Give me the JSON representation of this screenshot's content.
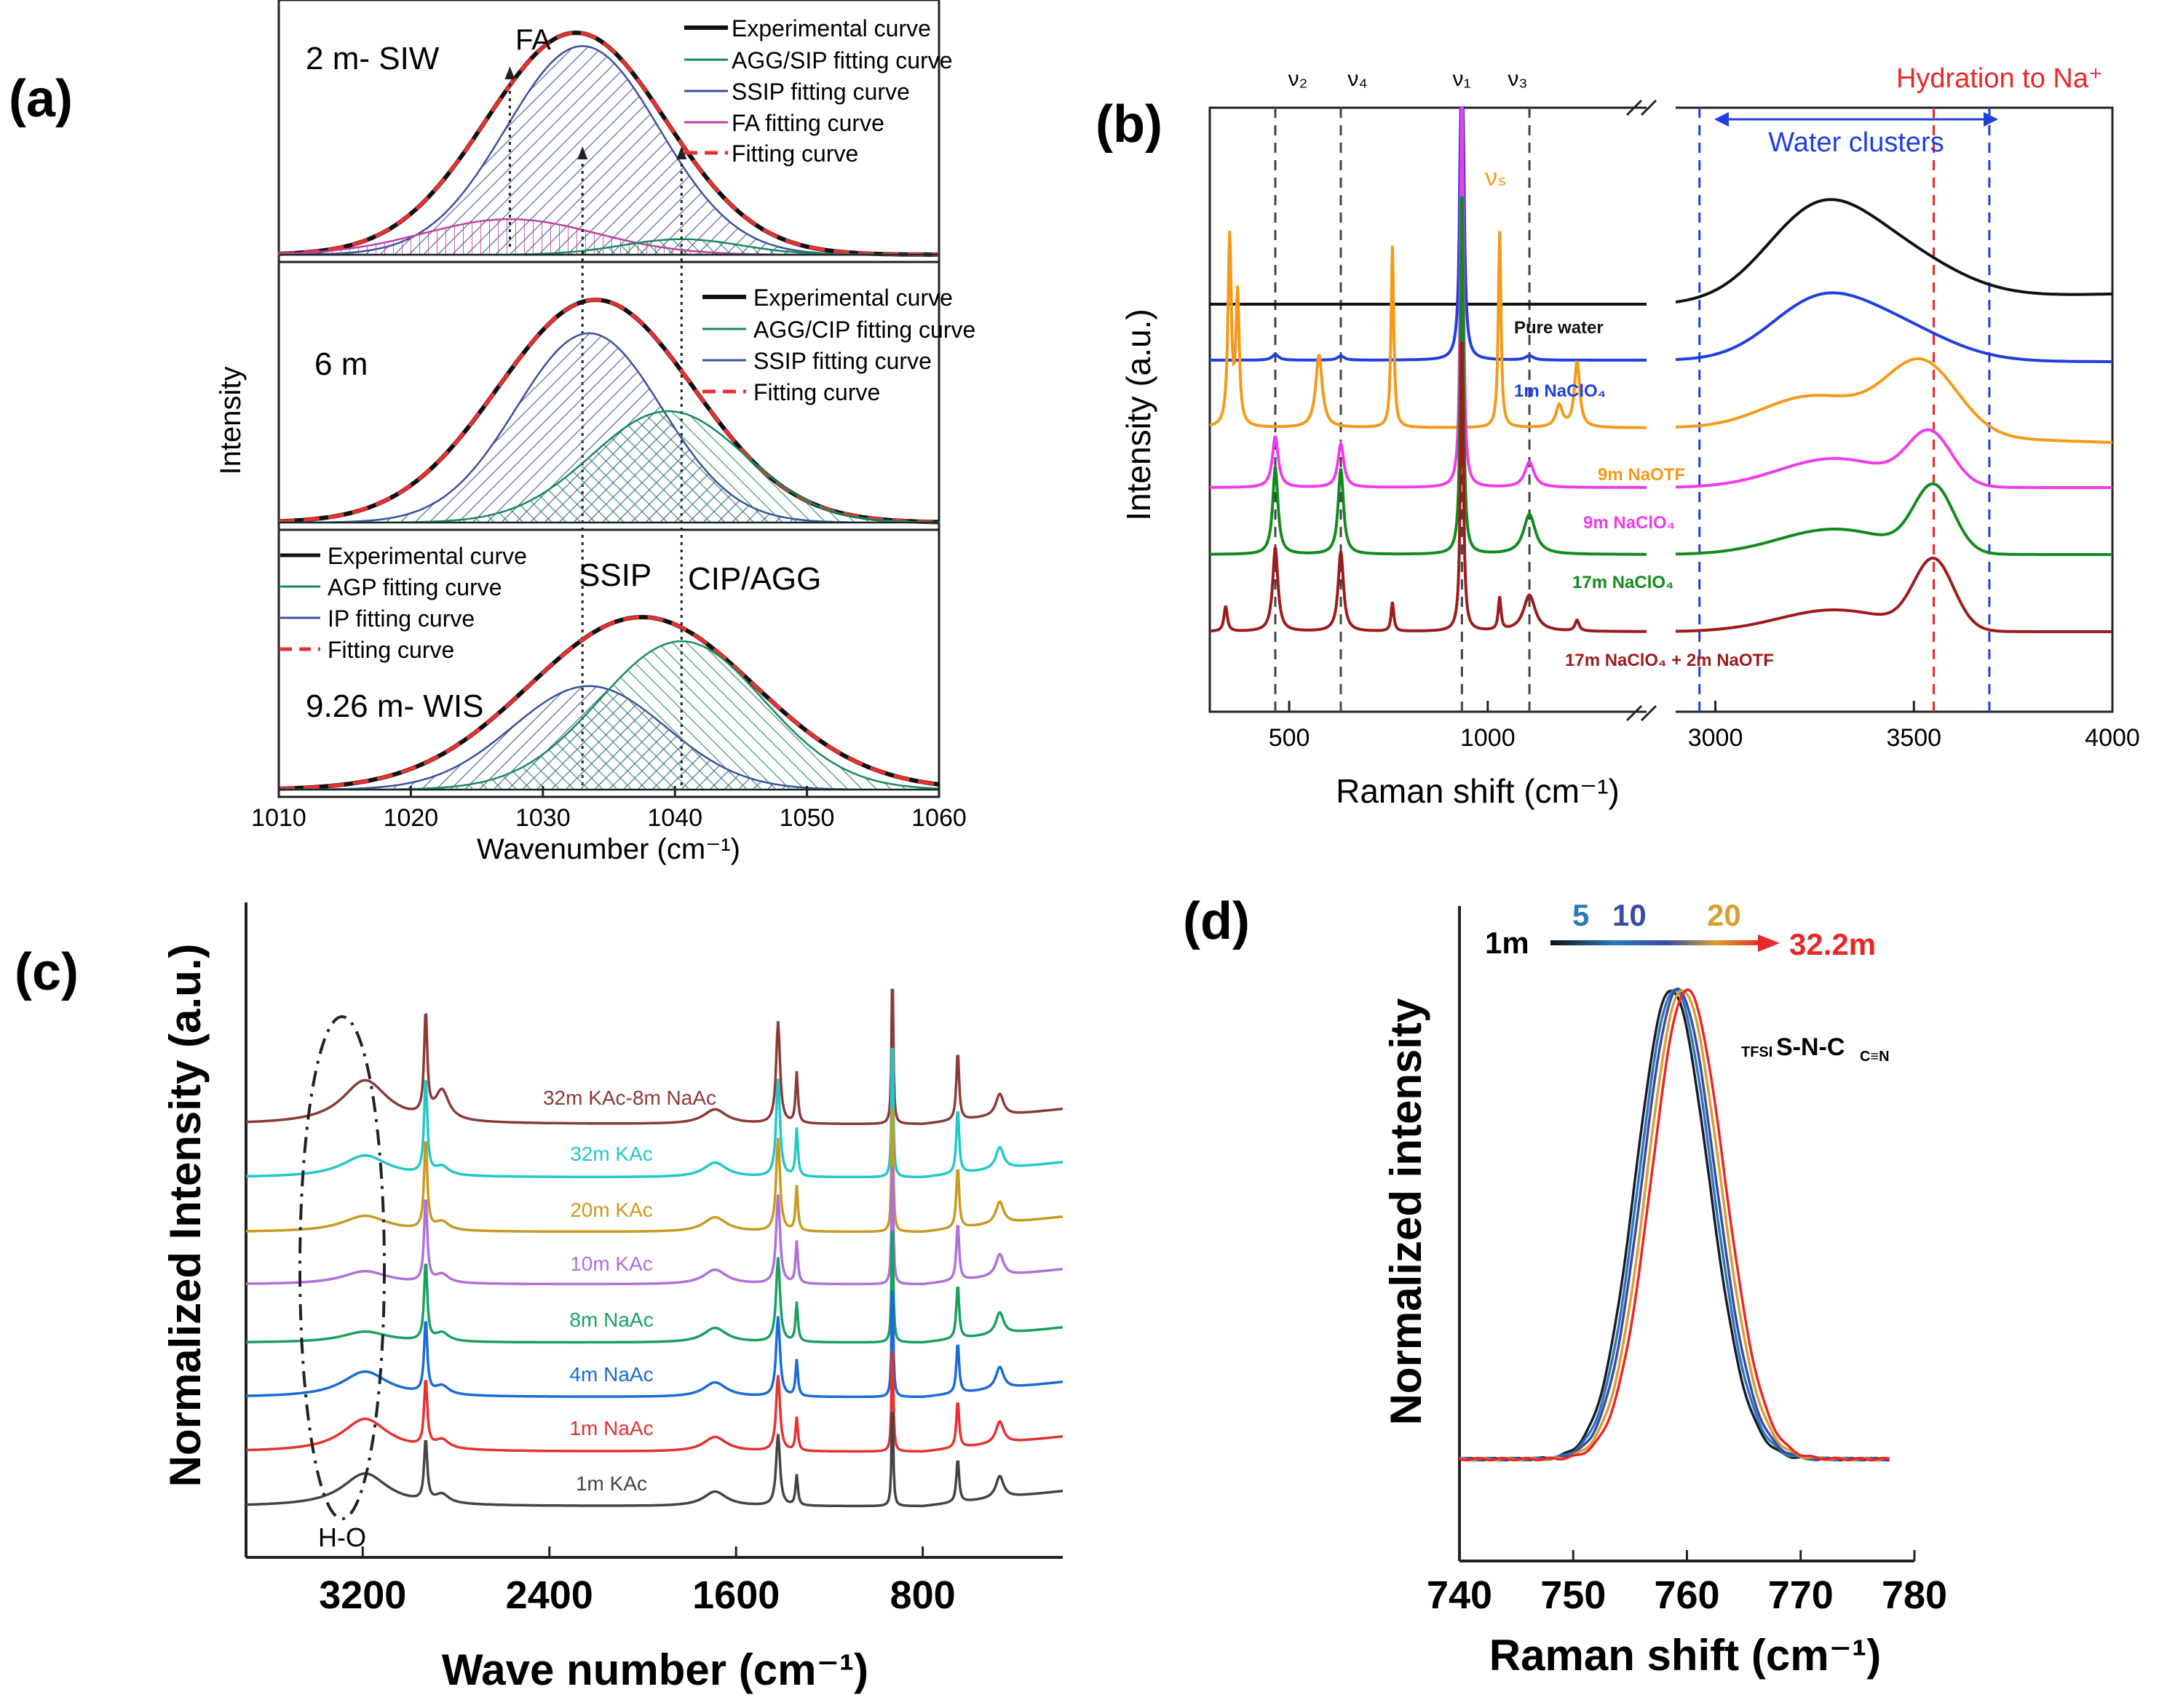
{
  "figure": {
    "panels": [
      "(a)",
      "(b)",
      "(c)",
      "(d)"
    ]
  },
  "chart_data": [
    {
      "id": "a",
      "type": "line",
      "panel_label": "(a)",
      "xlabel": "Wavenumber (cm⁻¹)",
      "ylabel": "Intensity",
      "xlim": [
        1010,
        1060
      ],
      "xticks": [
        "1010",
        "1020",
        "1030",
        "1040",
        "1050",
        "1060"
      ],
      "subpanels": [
        {
          "name": "2 m- SIW",
          "legend": [
            "Experimental curve",
            "AGG/SIP fitting curve",
            "SSIP fitting curve",
            "FA fitting curve",
            "Fitting curve"
          ],
          "peak_labels": [
            "FA"
          ],
          "components": [
            {
              "name": "Experimental curve",
              "center": 1032.5,
              "width": 6.8,
              "amp": 1.0,
              "color": "#111111"
            },
            {
              "name": "SSIP fitting curve",
              "center": 1033,
              "width": 5.8,
              "amp": 0.94,
              "color": "#3c4fa0"
            },
            {
              "name": "FA fitting curve",
              "center": 1027.5,
              "width": 6.5,
              "amp": 0.16,
              "color": "#c040a0"
            },
            {
              "name": "AGG/SIP fitting curve",
              "center": 1040.5,
              "width": 4.5,
              "amp": 0.07,
              "color": "#1a8a5a"
            }
          ]
        },
        {
          "name": "6 m",
          "legend": [
            "Experimental curve",
            "AGG/CIP fitting curve",
            "SSIP fitting curve",
            "Fitting curve"
          ],
          "components": [
            {
              "name": "Experimental curve",
              "center": 1034,
              "width": 7.4,
              "amp": 1.0,
              "color": "#111111"
            },
            {
              "name": "SSIP fitting curve",
              "center": 1033.5,
              "width": 5.5,
              "amp": 0.85,
              "color": "#3c4fa0"
            },
            {
              "name": "AGG/CIP fitting curve",
              "center": 1039.5,
              "width": 5.8,
              "amp": 0.5,
              "color": "#1a8a5a"
            }
          ]
        },
        {
          "name": "9.26 m- WIS",
          "legend": [
            "Experimental curve",
            "AGP fitting curve",
            "IP fitting curve",
            "Fitting curve"
          ],
          "peak_labels": [
            "SSIP",
            "CIP/AGG"
          ],
          "components": [
            {
              "name": "Experimental curve",
              "center": 1037.5,
              "width": 8.5,
              "amp": 1.0,
              "color": "#111111"
            },
            {
              "name": "IP fitting curve",
              "center": 1033.5,
              "width": 5.8,
              "amp": 0.6,
              "color": "#3c4fa0"
            },
            {
              "name": "AGP fitting curve",
              "center": 1040.5,
              "width": 6.2,
              "amp": 0.86,
              "color": "#1a8a5a"
            }
          ]
        }
      ]
    },
    {
      "id": "b",
      "type": "line",
      "panel_label": "(b)",
      "xlabel": "Raman shift (cm⁻¹)",
      "ylabel": "Intensity (a.u.)",
      "xticks_left": [
        "500",
        "1000"
      ],
      "xticks_right": [
        "3000",
        "3500",
        "4000"
      ],
      "xlim_left": [
        300,
        1400
      ],
      "xlim_right": [
        2900,
        4000
      ],
      "band_labels": [
        "ν₂",
        "ν₄",
        "ν₁",
        "ν₃",
        "νₛ"
      ],
      "band_positions": [
        465,
        630,
        935,
        1105
      ],
      "region_labels": {
        "water": "Water clusters",
        "hydration": "Hydration to Na⁺"
      },
      "series": [
        {
          "name": "Pure water",
          "color": "#111111"
        },
        {
          "name": "1m NaClO₄",
          "color": "#1f3fe0"
        },
        {
          "name": "9m NaOTF",
          "color": "#f59a18"
        },
        {
          "name": "9m NaClO₄",
          "color": "#f03ce8"
        },
        {
          "name": "17m NaClO₄",
          "color": "#128a1e"
        },
        {
          "name": "17m NaClO₄ + 2m NaOTF",
          "color": "#9c1c1c"
        }
      ]
    },
    {
      "id": "c",
      "type": "line",
      "panel_label": "(c)",
      "xlabel": "Wave number (cm⁻¹)",
      "ylabel": "Normalized Intensity (a.u.)",
      "xlim": [
        3700,
        200
      ],
      "xticks": [
        "3200",
        "2400",
        "1600",
        "800"
      ],
      "annotation": "H-O",
      "series": [
        {
          "name": "32m KAc-8m NaAc",
          "color": "#8b3a3a"
        },
        {
          "name": "32m KAc",
          "color": "#22c8c8"
        },
        {
          "name": "20m KAc",
          "color": "#c89a20"
        },
        {
          "name": "10m KAc",
          "color": "#b070d8"
        },
        {
          "name": "8m NaAc",
          "color": "#1aa060"
        },
        {
          "name": "4m NaAc",
          "color": "#1a6ad8"
        },
        {
          "name": "1m NaAc",
          "color": "#e83030"
        },
        {
          "name": "1m KAc",
          "color": "#444444"
        }
      ]
    },
    {
      "id": "d",
      "type": "line",
      "panel_label": "(d)",
      "xlabel": "Raman shift (cm⁻¹)",
      "ylabel": "Normalized intensity",
      "xlim": [
        740,
        780
      ],
      "xticks": [
        "740",
        "750",
        "760",
        "770",
        "780"
      ],
      "annotation": {
        "sub_prefix": "TFSI",
        "main": "S-N-C",
        "sub_suffix": "C≡N"
      },
      "scale_labels": [
        "1m",
        "5",
        "10",
        "20",
        "32.2m"
      ],
      "series": [
        {
          "name": "1m",
          "center": 758.6,
          "color": "#1a1a2e"
        },
        {
          "name": "5",
          "center": 758.9,
          "color": "#2a7ab8"
        },
        {
          "name": "10",
          "center": 759.2,
          "color": "#3a4aa8"
        },
        {
          "name": "20",
          "center": 759.6,
          "color": "#d8a030"
        },
        {
          "name": "32.2m",
          "center": 760.0,
          "color": "#e82828"
        }
      ]
    }
  ]
}
